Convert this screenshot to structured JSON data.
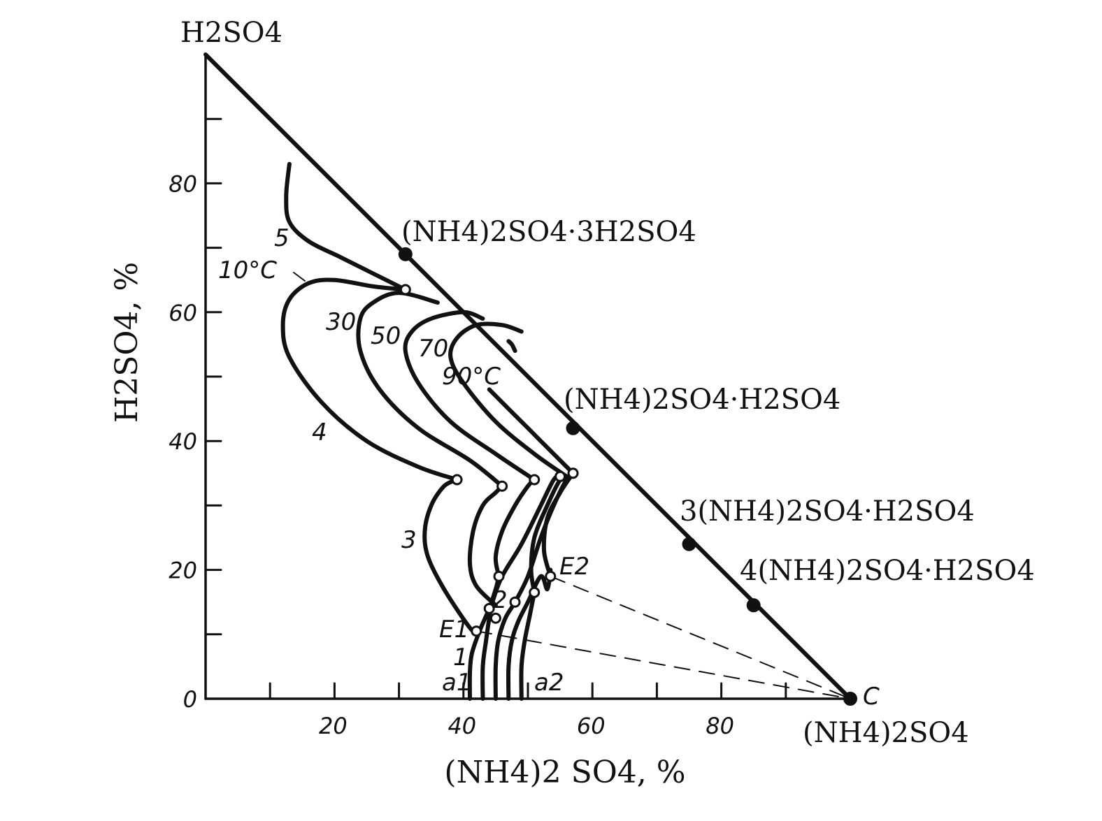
{
  "chart_data": {
    "type": "line",
    "title": "",
    "ylabel": "H2SO4, %",
    "xlabel": "(NH4)2 SO4, %",
    "xlim": [
      0,
      100
    ],
    "ylim": [
      0,
      100
    ],
    "x_ticks": [
      20,
      40,
      60,
      80
    ],
    "y_ticks": [
      0,
      20,
      40,
      60,
      80
    ],
    "grid": false,
    "vertices": [
      {
        "label": "H2SO4",
        "x": 0,
        "y": 100
      },
      {
        "label": "(NH4)2SO4",
        "x": 100,
        "y": 0
      }
    ],
    "vertex_c_label": "C",
    "compounds": [
      {
        "label": "(NH4)2SO4·3H2SO4",
        "x": 31,
        "y": 69
      },
      {
        "label": "(NH4)2SO4·H2SO4",
        "x": 57,
        "y": 42
      },
      {
        "label": "3(NH4)2SO4·H2SO4",
        "x": 75,
        "y": 24
      },
      {
        "label": "4(NH4)2SO4·H2SO4",
        "x": 85,
        "y": 14.5
      }
    ],
    "isotherm_labels": [
      "10°C",
      "30",
      "50",
      "70",
      "90°C"
    ],
    "series": [
      {
        "values": [
          [
            41,
            0
          ],
          [
            41,
            4
          ],
          [
            41.3,
            7
          ],
          [
            42.5,
            10.5
          ],
          [
            44,
            14
          ],
          [
            45,
            17
          ],
          [
            45.5,
            19
          ]
        ]
      },
      {
        "values": [
          [
            43,
            0
          ],
          [
            43,
            5
          ],
          [
            43.5,
            9
          ],
          [
            44,
            12.5
          ],
          [
            44.5,
            15
          ],
          [
            46,
            19
          ],
          [
            49,
            24
          ],
          [
            52,
            30
          ],
          [
            54,
            34
          ],
          [
            55,
            34.5
          ]
        ]
      },
      {
        "values": [
          [
            45,
            0
          ],
          [
            45,
            5
          ],
          [
            45.4,
            9
          ],
          [
            46.5,
            12.5
          ],
          [
            48,
            15
          ],
          [
            50,
            19
          ],
          [
            52,
            25
          ],
          [
            54,
            30
          ],
          [
            56,
            34
          ],
          [
            57,
            34.5
          ]
        ]
      },
      {
        "values": [
          [
            47,
            0
          ],
          [
            47,
            5
          ],
          [
            47.5,
            9
          ],
          [
            48.5,
            12
          ],
          [
            50,
            15
          ],
          [
            52,
            19
          ],
          [
            53,
            17
          ],
          [
            53.5,
            20
          ]
        ]
      },
      {
        "values": [
          [
            49,
            0
          ],
          [
            49,
            5
          ],
          [
            49.5,
            9
          ],
          [
            50.3,
            13
          ],
          [
            51,
            16.5
          ]
        ]
      },
      {
        "values": [
          [
            42,
            10.5
          ],
          [
            41,
            11
          ],
          [
            37,
            17
          ],
          [
            34.5,
            22
          ],
          [
            34,
            26
          ],
          [
            35,
            30
          ],
          [
            37,
            33
          ],
          [
            39,
            34
          ]
        ]
      },
      {
        "values": [
          [
            45,
            14.5
          ],
          [
            42,
            17.5
          ],
          [
            41,
            21
          ],
          [
            41.5,
            26
          ],
          [
            43,
            30
          ],
          [
            45,
            32
          ],
          [
            46,
            33
          ]
        ]
      },
      {
        "values": [
          [
            45.5,
            19
          ],
          [
            45,
            22
          ],
          [
            46,
            26
          ],
          [
            48,
            30
          ],
          [
            50,
            33
          ],
          [
            51,
            34
          ]
        ]
      },
      {
        "values": [
          [
            51,
            16.5
          ],
          [
            50.5,
            20
          ],
          [
            51,
            25
          ],
          [
            53,
            30
          ],
          [
            55,
            34
          ],
          [
            56,
            34.5
          ]
        ]
      },
      {
        "values": [
          [
            53.5,
            19
          ],
          [
            52.5,
            23
          ],
          [
            53,
            28
          ],
          [
            55,
            32
          ],
          [
            57,
            35
          ]
        ]
      },
      {
        "values": [
          [
            39,
            34
          ],
          [
            33,
            36
          ],
          [
            25,
            40
          ],
          [
            18,
            46
          ],
          [
            13,
            53
          ],
          [
            12,
            58
          ],
          [
            13,
            62
          ],
          [
            16,
            64.5
          ],
          [
            20,
            65
          ],
          [
            26,
            64
          ],
          [
            31,
            63.5
          ]
        ]
      },
      {
        "values": [
          [
            46,
            33
          ],
          [
            41,
            37
          ],
          [
            33,
            42
          ],
          [
            27,
            48
          ],
          [
            24,
            54
          ],
          [
            24,
            59
          ],
          [
            26,
            61.5
          ],
          [
            30,
            63
          ],
          [
            36,
            61.5
          ]
        ]
      },
      {
        "values": [
          [
            51,
            34
          ],
          [
            45,
            38
          ],
          [
            38,
            43
          ],
          [
            33,
            49
          ],
          [
            31,
            54
          ],
          [
            32,
            57
          ],
          [
            35,
            59
          ],
          [
            40,
            60
          ],
          [
            43,
            59
          ]
        ]
      },
      {
        "values": [
          [
            56,
            34.5
          ],
          [
            51,
            38
          ],
          [
            45,
            43
          ],
          [
            40,
            49
          ],
          [
            38,
            53
          ],
          [
            39,
            56
          ],
          [
            42,
            58
          ],
          [
            46,
            58
          ],
          [
            49,
            57
          ]
        ]
      },
      {
        "values": [
          [
            57,
            35
          ],
          [
            52,
            40
          ],
          [
            47,
            45
          ],
          [
            44,
            48
          ]
        ]
      },
      {
        "values": [
          [
            48,
            54
          ],
          [
            47.5,
            55
          ],
          [
            47,
            55.5
          ]
        ]
      },
      {
        "values": [
          [
            13,
            83
          ],
          [
            12.5,
            78
          ],
          [
            13,
            74
          ],
          [
            16,
            71
          ],
          [
            21,
            68.5
          ],
          [
            26,
            66
          ],
          [
            31,
            63.5
          ]
        ]
      }
    ],
    "curve_labels": [
      "1",
      "2",
      "3",
      "4",
      "5"
    ],
    "point_labels": [
      "E1",
      "E2",
      "a1",
      "a2"
    ],
    "open_points": [
      [
        42,
        10.5
      ],
      [
        44,
        14
      ],
      [
        45,
        12.5
      ],
      [
        45.5,
        19
      ],
      [
        48,
        15
      ],
      [
        51,
        16.5
      ],
      [
        53.5,
        19
      ],
      [
        39,
        34
      ],
      [
        46,
        33
      ],
      [
        51,
        34
      ],
      [
        55,
        34.5
      ],
      [
        57,
        35
      ],
      [
        31,
        63.5
      ]
    ],
    "tie_lines": [
      {
        "from": [
          42,
          10.5
        ],
        "to": [
          100,
          0
        ]
      },
      {
        "from": [
          53.5,
          19
        ],
        "to": [
          100,
          0
        ]
      }
    ]
  }
}
